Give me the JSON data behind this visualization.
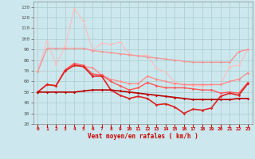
{
  "xlabel": "Vent moyen/en rafales ( km/h )",
  "background_color": "#cce8ee",
  "grid_color": "#aacccc",
  "xlim": [
    -0.5,
    23.5
  ],
  "ylim": [
    20,
    135
  ],
  "yticks": [
    20,
    30,
    40,
    50,
    60,
    70,
    80,
    90,
    100,
    110,
    120,
    130
  ],
  "xticks": [
    0,
    1,
    2,
    3,
    4,
    5,
    6,
    7,
    8,
    9,
    10,
    11,
    12,
    13,
    14,
    15,
    16,
    17,
    18,
    19,
    20,
    21,
    22,
    23
  ],
  "series": [
    {
      "color": "#ffbbbb",
      "linewidth": 0.8,
      "marker": "D",
      "markersize": 1.8,
      "data": [
        70,
        98,
        76,
        93,
        128,
        117,
        89,
        96,
        95,
        97,
        86,
        84,
        85,
        72,
        69,
        59,
        57,
        56,
        56,
        57,
        57,
        74,
        75,
        90
      ]
    },
    {
      "color": "#ee9999",
      "linewidth": 1.0,
      "marker": "D",
      "markersize": 1.8,
      "data": [
        69,
        91,
        91,
        91,
        91,
        91,
        89,
        88,
        87,
        86,
        85,
        84,
        83,
        82,
        81,
        80,
        79,
        78,
        78,
        78,
        78,
        78,
        88,
        90
      ]
    },
    {
      "color": "#ff8888",
      "linewidth": 0.9,
      "marker": "D",
      "markersize": 1.8,
      "data": [
        50,
        57,
        56,
        71,
        76,
        74,
        73,
        66,
        62,
        60,
        58,
        58,
        65,
        62,
        60,
        58,
        57,
        57,
        57,
        57,
        57,
        60,
        62,
        68
      ]
    },
    {
      "color": "#ff5555",
      "linewidth": 1.0,
      "marker": "D",
      "markersize": 1.8,
      "data": [
        50,
        57,
        56,
        71,
        77,
        75,
        67,
        66,
        60,
        56,
        52,
        54,
        59,
        56,
        54,
        54,
        54,
        53,
        52,
        52,
        49,
        50,
        49,
        59
      ]
    },
    {
      "color": "#dd2222",
      "linewidth": 1.2,
      "marker": "D",
      "markersize": 1.8,
      "data": [
        50,
        57,
        56,
        70,
        75,
        74,
        65,
        65,
        52,
        47,
        44,
        46,
        44,
        38,
        39,
        36,
        30,
        34,
        33,
        35,
        46,
        49,
        47,
        58
      ]
    },
    {
      "color": "#bb0000",
      "linewidth": 1.2,
      "marker": "D",
      "markersize": 1.8,
      "data": [
        50,
        50,
        50,
        50,
        50,
        51,
        52,
        52,
        52,
        51,
        50,
        49,
        48,
        47,
        46,
        45,
        44,
        43,
        43,
        43,
        43,
        43,
        44,
        44
      ]
    }
  ]
}
